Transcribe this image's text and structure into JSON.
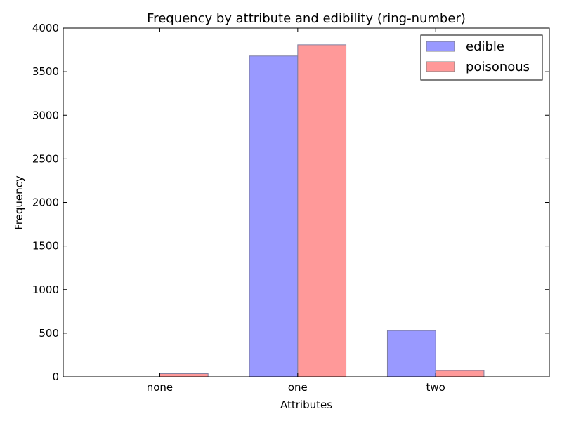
{
  "chart_data": {
    "type": "bar",
    "title": "Frequency by attribute and edibility (ring-number)",
    "xlabel": "Attributes",
    "ylabel": "Frequency",
    "categories": [
      "none",
      "one",
      "two"
    ],
    "series": [
      {
        "name": "edible",
        "values": [
          0,
          3680,
          530
        ],
        "color": "#9999ff"
      },
      {
        "name": "poisonous",
        "values": [
          36,
          3808,
          72
        ],
        "color": "#ff9999"
      }
    ],
    "ylim": [
      0,
      4000
    ],
    "yticks": [
      0,
      500,
      1000,
      1500,
      2000,
      2500,
      3000,
      3500,
      4000
    ],
    "grid": false,
    "legend_position": "top-right"
  }
}
